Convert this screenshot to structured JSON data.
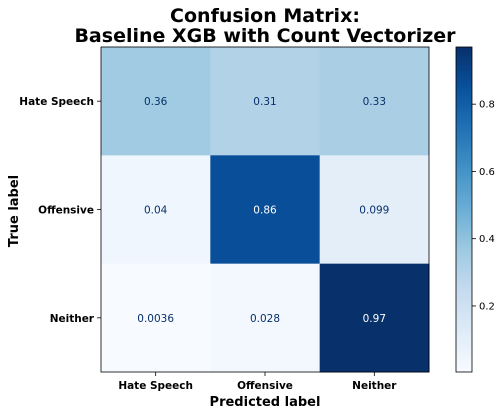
{
  "chart_data": {
    "type": "heatmap",
    "title_lines": [
      "Confusion Matrix:",
      "Baseline XGB with Count Vectorizer"
    ],
    "xlabel": "Predicted label",
    "ylabel": "True label",
    "x_categories": [
      "Hate Speech",
      "Offensive",
      "Neither"
    ],
    "y_categories": [
      "Hate Speech",
      "Offensive",
      "Neither"
    ],
    "values": [
      [
        0.36,
        0.31,
        0.33
      ],
      [
        0.04,
        0.86,
        0.099
      ],
      [
        0.0036,
        0.028,
        0.97
      ]
    ],
    "value_labels": [
      [
        "0.36",
        "0.31",
        "0.33"
      ],
      [
        "0.04",
        "0.86",
        "0.099"
      ],
      [
        "0.0036",
        "0.028",
        "0.97"
      ]
    ],
    "colormap": "Blues",
    "colorbar": {
      "range": [
        0.0036,
        0.97
      ],
      "ticks": [
        0.2,
        0.4,
        0.6,
        0.8
      ],
      "tick_labels": [
        "0.2",
        "0.4",
        "0.6",
        "0.8"
      ]
    },
    "grid": false
  }
}
